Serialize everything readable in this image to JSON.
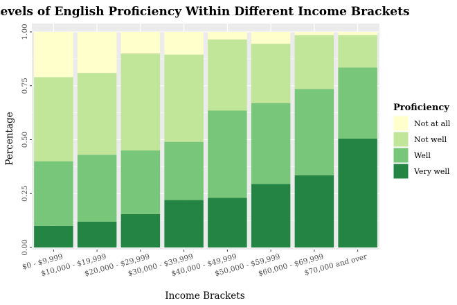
{
  "chart_data": {
    "type": "bar",
    "stacked": true,
    "title": "Levels of English Proficiency Within Different Income Brackets",
    "xlabel": "Income Brackets",
    "ylabel": "Percentage",
    "ylim": [
      0,
      1
    ],
    "yticks": [
      "0.00",
      "0.25",
      "0.50",
      "0.75",
      "1.00"
    ],
    "categories": [
      "$0 - $9,999",
      "$10,000 - $19,999",
      "$20,000 - $29,999",
      "$30,000 - $39,999",
      "$40,000 - $49,999",
      "$50,000 - $59,999",
      "$60,000 - $69,999",
      "$70,000 and over"
    ],
    "legend_title": "Proficiency",
    "legend_position": "right",
    "grid": true,
    "series": [
      {
        "name": "Very well",
        "color": "#238443",
        "values": [
          0.1,
          0.12,
          0.155,
          0.22,
          0.23,
          0.295,
          0.335,
          0.505
        ]
      },
      {
        "name": "Well",
        "color": "#78c679",
        "values": [
          0.3,
          0.31,
          0.295,
          0.27,
          0.405,
          0.375,
          0.4,
          0.33
        ]
      },
      {
        "name": "Not well",
        "color": "#c2e699",
        "values": [
          0.39,
          0.38,
          0.45,
          0.405,
          0.33,
          0.275,
          0.25,
          0.15
        ]
      },
      {
        "name": "Not at all",
        "color": "#ffffcc",
        "values": [
          0.21,
          0.19,
          0.1,
          0.105,
          0.035,
          0.055,
          0.015,
          0.015
        ]
      }
    ]
  }
}
